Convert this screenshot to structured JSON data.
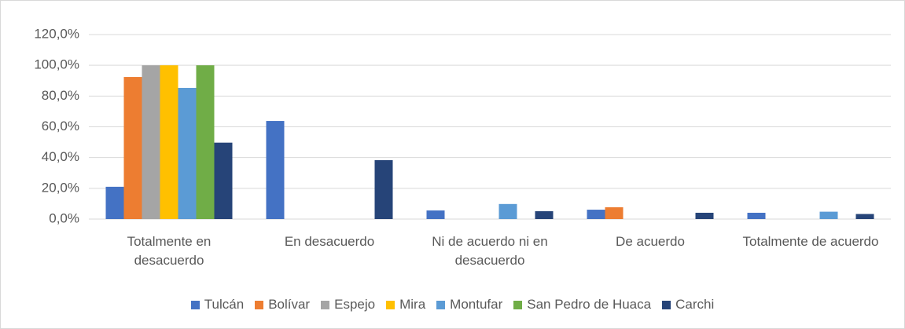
{
  "chart_data": {
    "type": "bar",
    "categories": [
      "Totalmente en desacuerdo",
      "En desacuerdo",
      "Ni de acuerdo ni en desacuerdo",
      "De acuerdo",
      "Totalmente de acuerdo"
    ],
    "series": [
      {
        "name": "Tulcán",
        "color": "#4472c4",
        "values": [
          21.0,
          63.8,
          5.6,
          6.1,
          4.1
        ]
      },
      {
        "name": "Bolívar",
        "color": "#ed7d31",
        "values": [
          92.4,
          0,
          0,
          7.7,
          0
        ]
      },
      {
        "name": "Espejo",
        "color": "#a5a5a5",
        "values": [
          100,
          0,
          0,
          0,
          0
        ]
      },
      {
        "name": "Mira",
        "color": "#ffc000",
        "values": [
          100,
          0,
          0,
          0,
          0
        ]
      },
      {
        "name": "Montufar",
        "color": "#5b9bd5",
        "values": [
          85.3,
          0,
          9.8,
          0,
          4.8
        ]
      },
      {
        "name": "San Pedro de Huaca",
        "color": "#70ad47",
        "values": [
          100,
          0,
          0,
          0,
          0
        ]
      },
      {
        "name": "Carchi",
        "color": "#264478",
        "values": [
          49.7,
          38.3,
          5.1,
          4.1,
          3.3
        ]
      }
    ],
    "ylim": [
      0,
      120
    ],
    "yticks": [
      {
        "value": 0,
        "label": "0,0%"
      },
      {
        "value": 20,
        "label": "20,0%"
      },
      {
        "value": 40,
        "label": "40,0%"
      },
      {
        "value": 60,
        "label": "60,0%"
      },
      {
        "value": 80,
        "label": "80,0%"
      },
      {
        "value": 100,
        "label": "100,0%"
      },
      {
        "value": 120,
        "label": "120,0%"
      }
    ],
    "grid": true,
    "legend": "bottom"
  }
}
